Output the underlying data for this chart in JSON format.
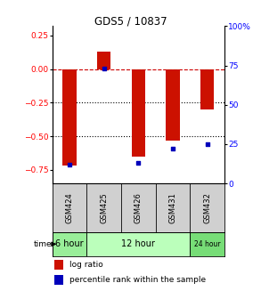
{
  "title": "GDS5 / 10837",
  "samples": [
    "GSM424",
    "GSM425",
    "GSM426",
    "GSM431",
    "GSM432"
  ],
  "log_ratio": [
    -0.72,
    0.13,
    -0.65,
    -0.53,
    -0.3
  ],
  "percentile_rank_pct": [
    12,
    73,
    13,
    22,
    25
  ],
  "ylim_left": [
    -0.85,
    0.32
  ],
  "ylim_right": [
    0,
    100
  ],
  "yticks_left": [
    0.25,
    0.0,
    -0.25,
    -0.5,
    -0.75
  ],
  "yticks_right": [
    100,
    75,
    50,
    25,
    0
  ],
  "hlines": [
    0.0,
    -0.25,
    -0.5
  ],
  "hline_styles": [
    "dashed",
    "dotted",
    "dotted"
  ],
  "hline_colors": [
    "#cc0000",
    "#000000",
    "#000000"
  ],
  "bar_color": "#cc1100",
  "dot_color": "#0000bb",
  "time_labels": [
    "6 hour",
    "12 hour",
    "24 hour"
  ],
  "time_groups": [
    [
      0
    ],
    [
      1,
      2,
      3
    ],
    [
      4
    ]
  ],
  "time_bg_colors": [
    "#99ee99",
    "#bbffbb",
    "#77dd77"
  ],
  "sample_bg_color": "#d0d0d0",
  "plot_bg": "#ffffff",
  "legend_bar": "log ratio",
  "legend_dot": "percentile rank within the sample"
}
